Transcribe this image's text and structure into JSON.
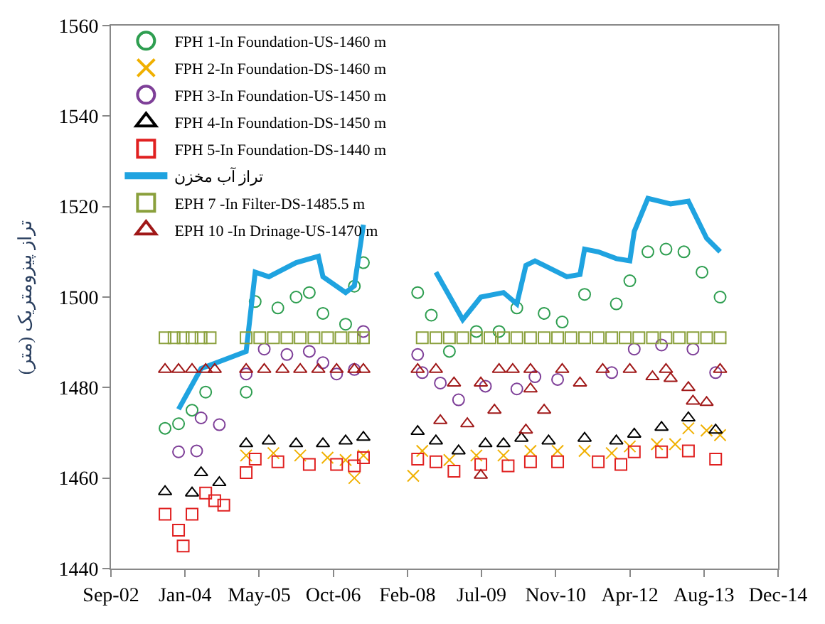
{
  "chart_data": {
    "type": "scatter",
    "ylabel": "تراز پیزومتریک (متر)",
    "xlim": [
      "2002-09-01",
      "2014-12-27"
    ],
    "xticks": [
      {
        "value": "2002-09-01",
        "label": "Sep-02"
      },
      {
        "value": "2004-01-14",
        "label": "Jan-04"
      },
      {
        "value": "2005-05-28",
        "label": "May-05"
      },
      {
        "value": "2006-10-10",
        "label": "Oct-06"
      },
      {
        "value": "2008-02-22",
        "label": "Feb-08"
      },
      {
        "value": "2009-07-06",
        "label": "Jul-09"
      },
      {
        "value": "2010-11-18",
        "label": "Nov-10"
      },
      {
        "value": "2012-04-01",
        "label": "Apr-12"
      },
      {
        "value": "2013-08-14",
        "label": "Aug-13"
      },
      {
        "value": "2014-12-27",
        "label": "Dec-14"
      }
    ],
    "ylim": [
      1440,
      1560
    ],
    "yticks": [
      1440,
      1460,
      1480,
      1500,
      1520,
      1540,
      1560
    ],
    "legend": "top left",
    "series": [
      {
        "name": "FPH 1-In Foundation-US-1460 m",
        "color": "#2e9e50",
        "marker": "circle",
        "x": [
          "2003-09",
          "2003-12",
          "2004-03",
          "2004-06",
          "2005-03",
          "2005-05",
          "2005-10",
          "2006-02",
          "2006-05",
          "2006-08",
          "2007-01",
          "2007-03",
          "2007-05",
          "2008-05",
          "2008-08",
          "2008-12",
          "2009-06",
          "2009-11",
          "2010-03",
          "2010-09",
          "2011-01",
          "2011-06",
          "2012-01",
          "2012-04",
          "2012-08",
          "2012-12",
          "2013-04",
          "2013-08",
          "2013-12"
        ],
        "values": [
          1471,
          1472,
          1475,
          1479,
          1479,
          1499,
          1497.6,
          1500,
          1501,
          1496.4,
          1494,
          1502.4,
          1507.6,
          1501,
          1496,
          1488,
          1492.4,
          1492.4,
          1497.6,
          1496.4,
          1494.5,
          1500.6,
          1498.5,
          1503.6,
          1510,
          1510.6,
          1510,
          1505.5,
          1500
        ]
      },
      {
        "name": "FPH 2-In Foundation-DS-1460 m",
        "color": "#f0b000",
        "marker": "cross",
        "x": [
          "2005-03",
          "2005-09",
          "2006-03",
          "2006-09",
          "2007-01",
          "2007-03",
          "2007-05",
          "2008-04",
          "2008-06",
          "2008-12",
          "2009-06",
          "2009-12",
          "2010-06",
          "2010-12",
          "2011-06",
          "2011-12",
          "2012-04",
          "2012-10",
          "2013-02",
          "2013-05",
          "2013-09",
          "2013-12"
        ],
        "values": [
          1465,
          1465.5,
          1465,
          1464.5,
          1464,
          1460,
          1465,
          1460.5,
          1466,
          1464,
          1465,
          1465,
          1466,
          1466,
          1466,
          1465.5,
          1467,
          1467.5,
          1467.5,
          1471,
          1470.5,
          1469.5
        ]
      },
      {
        "name": "FPH 3-In Foundation-US-1450 m",
        "color": "#7e3f98",
        "marker": "circle",
        "x": [
          "2003-12",
          "2004-04",
          "2004-05",
          "2004-09",
          "2005-03",
          "2005-07",
          "2005-12",
          "2006-05",
          "2006-08",
          "2006-11",
          "2007-03",
          "2007-05",
          "2008-05",
          "2008-06",
          "2008-10",
          "2009-02",
          "2009-08",
          "2010-03",
          "2010-07",
          "2010-12",
          "2011-12",
          "2012-05",
          "2012-11",
          "2013-06",
          "2013-11"
        ],
        "values": [
          1465.8,
          1466,
          1473.3,
          1471.8,
          1483,
          1488.5,
          1487.3,
          1488,
          1485.5,
          1483,
          1484,
          1492.4,
          1487.3,
          1483.3,
          1481,
          1477.3,
          1480.3,
          1479.7,
          1482.4,
          1481.8,
          1483.3,
          1488.5,
          1489.4,
          1488.5,
          1483.3
        ]
      },
      {
        "name": "FPH 4-In Foundation-DS-1450 m",
        "color": "#000000",
        "marker": "triangle",
        "x": [
          "2003-09",
          "2004-03",
          "2004-05",
          "2004-09",
          "2005-03",
          "2005-08",
          "2006-02",
          "2006-08",
          "2007-01",
          "2007-05",
          "2008-05",
          "2008-09",
          "2009-02",
          "2009-08",
          "2009-12",
          "2010-04",
          "2010-10",
          "2011-06",
          "2012-01",
          "2012-05",
          "2012-11",
          "2013-05",
          "2013-11"
        ],
        "values": [
          1457,
          1456.7,
          1461.2,
          1459,
          1467.6,
          1468.2,
          1467.6,
          1467.6,
          1468.2,
          1469,
          1470.3,
          1468.2,
          1466,
          1467.6,
          1467.6,
          1468.8,
          1468.2,
          1468.8,
          1468.2,
          1469.7,
          1471.2,
          1473.3,
          1470.6
        ]
      },
      {
        "name": "FPH 5-In Foundation-DS-1440 m",
        "color": "#e02020",
        "marker": "square",
        "x": [
          "2003-09",
          "2003-12",
          "2004-01",
          "2004-03",
          "2004-06",
          "2004-08",
          "2004-10",
          "2005-03",
          "2005-05",
          "2005-10",
          "2006-05",
          "2006-11",
          "2007-03",
          "2007-05",
          "2008-05",
          "2008-09",
          "2009-01",
          "2009-07",
          "2010-01",
          "2010-06",
          "2010-12",
          "2011-09",
          "2012-02",
          "2012-05",
          "2012-11",
          "2013-05",
          "2013-11"
        ],
        "values": [
          1452,
          1448.5,
          1445,
          1452,
          1456.7,
          1455,
          1454,
          1461.2,
          1464.2,
          1463.6,
          1463,
          1463,
          1462.7,
          1464.5,
          1464.2,
          1463.6,
          1461.5,
          1463,
          1462.7,
          1463.6,
          1463.6,
          1463.6,
          1463,
          1465.8,
          1465.8,
          1466,
          1464.2
        ]
      },
      {
        "name": "تراز آب مخزن",
        "type": "line",
        "color": "#1fa3e0",
        "marker": "none",
        "x": [
          "2003-12",
          "2004-05",
          "2005-03",
          "2005-05",
          "2005-08",
          "2006-02",
          "2006-07",
          "2006-08",
          "2007-01",
          "2007-03",
          "2007-05",
          "2008-02",
          "2008-09",
          "2009-03",
          "2009-07",
          "2009-12",
          "2010-03",
          "2010-05",
          "2010-07",
          "2011-02",
          "2011-05",
          "2011-06",
          "2011-09",
          "2012-01",
          "2012-04",
          "2012-05",
          "2012-08",
          "2013-01",
          "2013-05",
          "2013-09",
          "2013-12"
        ],
        "values": [
          1475.2,
          1484.2,
          1488,
          1505.5,
          1504.5,
          1507.6,
          1509,
          1504.5,
          1501,
          1502.5,
          1516,
          null,
          1505.5,
          1495,
          1500,
          1501,
          1498.5,
          1507,
          1508,
          1504.5,
          1505,
          1510.6,
          1510,
          1508.5,
          1508,
          1514.5,
          1521.8,
          1520.6,
          1521.2,
          1513,
          1510
        ]
      },
      {
        "name": "EPH 7 -In Filter-DS-1485.5 m",
        "color": "#8aa03c",
        "marker": "square",
        "x": [
          "2003-09",
          "2003-11",
          "2004-01",
          "2004-03",
          "2004-05",
          "2004-07",
          "2005-03",
          "2005-06",
          "2005-09",
          "2005-12",
          "2006-03",
          "2006-06",
          "2006-09",
          "2006-12",
          "2007-03",
          "2007-05",
          "2008-06",
          "2008-09",
          "2008-12",
          "2009-03",
          "2009-06",
          "2009-09",
          "2009-12",
          "2010-03",
          "2010-06",
          "2010-09",
          "2010-12",
          "2011-03",
          "2011-06",
          "2011-09",
          "2011-12",
          "2012-03",
          "2012-06",
          "2012-09",
          "2012-12",
          "2013-03",
          "2013-06",
          "2013-09",
          "2013-12"
        ],
        "values": [
          1491,
          1491,
          1491,
          1491,
          1491,
          1491,
          1491,
          1491,
          1491,
          1491,
          1491,
          1491,
          1491,
          1491,
          1491,
          1491,
          1491,
          1491,
          1491,
          1491,
          1491,
          1491,
          1491,
          1491,
          1491,
          1491,
          1491,
          1491,
          1491,
          1491,
          1491,
          1491,
          1491,
          1491,
          1491,
          1491,
          1491,
          1491,
          1491
        ]
      },
      {
        "name": "EPH 10 -In Drinage-US-1470 m",
        "color": "#a01818",
        "marker": "triangle",
        "x": [
          "2003-09",
          "2003-12",
          "2004-03",
          "2004-06",
          "2004-08",
          "2005-03",
          "2005-07",
          "2005-11",
          "2006-03",
          "2006-07",
          "2006-11",
          "2007-03",
          "2007-05",
          "2008-05",
          "2008-09",
          "2008-10",
          "2009-01",
          "2009-04",
          "2009-07",
          "2009-07",
          "2009-10",
          "2009-11",
          "2010-02",
          "2010-05",
          "2010-06",
          "2010-06",
          "2010-09",
          "2011-01",
          "2011-05",
          "2011-10",
          "2012-04",
          "2012-09",
          "2012-12",
          "2013-01",
          "2013-05",
          "2013-06",
          "2013-09",
          "2013-12"
        ],
        "values": [
          1484,
          1484,
          1484,
          1484,
          1484,
          1484,
          1484,
          1484,
          1484,
          1484,
          1484,
          1484,
          1484,
          1484,
          1484,
          1472.7,
          1481,
          1472,
          1481,
          1460.6,
          1475,
          1484,
          1484,
          1470.6,
          1479.7,
          1484,
          1475,
          1484,
          1481,
          1484,
          1484,
          1482.4,
          1484,
          1482,
          1480,
          1477,
          1476.7,
          1484
        ]
      }
    ]
  }
}
